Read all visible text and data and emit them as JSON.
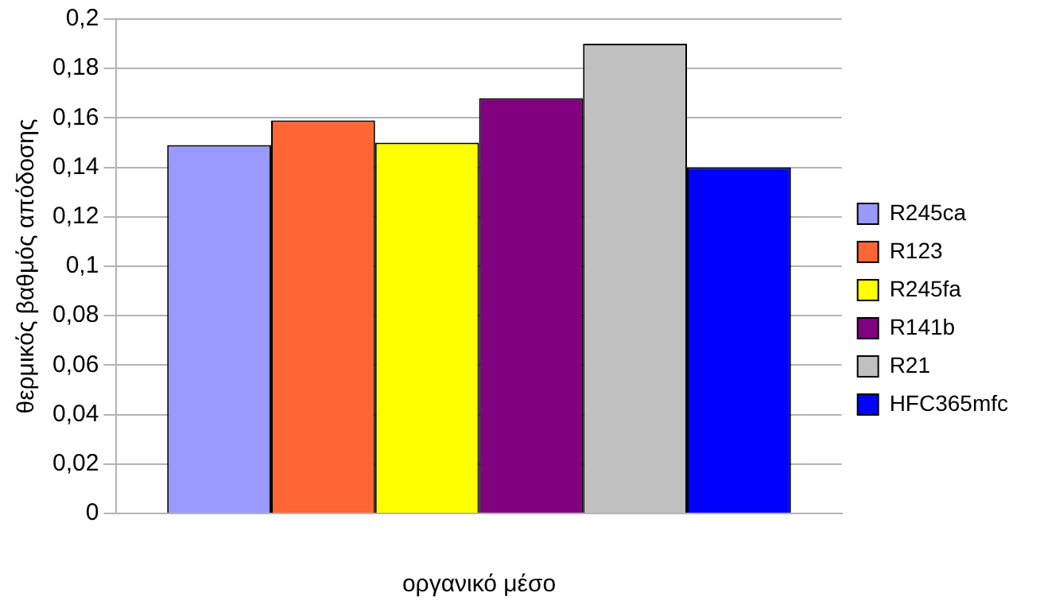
{
  "chart_data": {
    "type": "bar",
    "xlabel": "οργανικό μέσο",
    "ylabel": "θερμικός βαθμός απόδοσης",
    "categories": [
      null
    ],
    "series": [
      {
        "name": "R245ca",
        "color": "#9999ff",
        "values": [
          0.149
        ]
      },
      {
        "name": "R123",
        "color": "#ff6633",
        "values": [
          0.159
        ]
      },
      {
        "name": "R245fa",
        "color": "#ffff00",
        "values": [
          0.15
        ]
      },
      {
        "name": "R141b",
        "color": "#800080",
        "values": [
          0.168
        ]
      },
      {
        "name": "R21",
        "color": "#c0c0c0",
        "values": [
          0.19
        ]
      },
      {
        "name": "HFC365mfc",
        "color": "#0000ff",
        "values": [
          0.14
        ]
      }
    ],
    "ylim": [
      0,
      0.2
    ],
    "yticks": [
      0,
      {
        "value": 0.02,
        "label": "0,02"
      },
      {
        "value": 0.04,
        "label": "0,04"
      },
      {
        "value": 0.06,
        "label": "0,06"
      },
      {
        "value": 0.08,
        "label": "0,08"
      },
      {
        "value": 0.1,
        "label": "0,1"
      },
      {
        "value": 0.12,
        "label": "0,12"
      },
      {
        "value": 0.14,
        "label": "0,14"
      },
      {
        "value": 0.16,
        "label": "0,16"
      },
      {
        "value": 0.18,
        "label": "0,18"
      },
      {
        "value": 0.2,
        "label": "0,2"
      }
    ],
    "grid": "y",
    "legend": "right"
  }
}
